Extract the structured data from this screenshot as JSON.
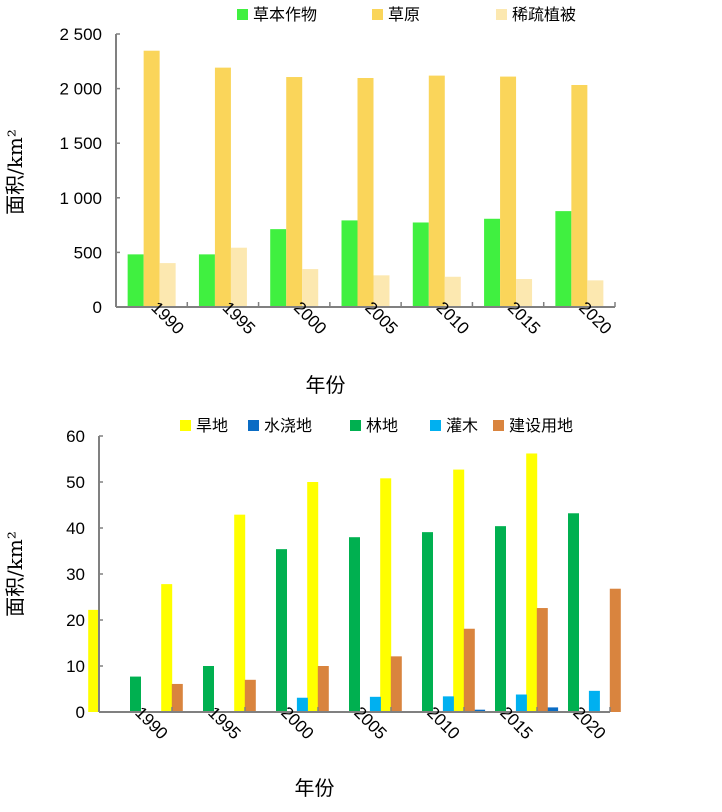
{
  "chart_data": [
    {
      "type": "bar",
      "title": "",
      "xlabel": "年份",
      "ylabel": "面积/km²",
      "ylim": [
        0,
        2500
      ],
      "yticks": [
        "0",
        "500",
        "1 000",
        "1 500",
        "2 000",
        "2 500"
      ],
      "ytick_values": [
        0,
        500,
        1000,
        1500,
        2000,
        2500
      ],
      "categories": [
        "1990",
        "1995",
        "2000",
        "2005",
        "2010",
        "2015",
        "2020"
      ],
      "legend": "top",
      "series": [
        {
          "name": "草本作物",
          "color": "#40F040",
          "values": [
            482,
            482,
            713,
            793,
            774,
            808,
            878
          ]
        },
        {
          "name": "草原",
          "color": "#FAD55A",
          "values": [
            2347,
            2192,
            2106,
            2097,
            2119,
            2110,
            2033
          ]
        },
        {
          "name": "稀疏植被",
          "color": "#FCE8B0",
          "values": [
            402,
            543,
            347,
            290,
            277,
            256,
            244
          ]
        }
      ]
    },
    {
      "type": "bar",
      "title": "",
      "xlabel": "年份",
      "ylabel": "面积/km²",
      "ylim": [
        0,
        60
      ],
      "yticks": [
        "0",
        "10",
        "20",
        "30",
        "40",
        "50",
        "60"
      ],
      "ytick_values": [
        0,
        10,
        20,
        30,
        40,
        50,
        60
      ],
      "categories": [
        "1990",
        "1995",
        "2000",
        "2005",
        "2010",
        "2015",
        "2020"
      ],
      "legend": "top",
      "series": [
        {
          "name": "旱地",
          "color": "#FFFF00",
          "values": [
            22.2,
            27.8,
            42.9,
            50.0,
            50.8,
            52.7,
            56.2
          ]
        },
        {
          "name": "水浇地",
          "color": "#0A6CC4",
          "values": [
            0,
            0,
            0,
            0.2,
            0.2,
            0.5,
            1.0
          ]
        },
        {
          "name": "林地",
          "color": "#00B050",
          "values": [
            7.7,
            10.0,
            35.4,
            38.0,
            39.1,
            40.4,
            43.2
          ]
        },
        {
          "name": "灌木",
          "color": "#00B0F0",
          "values": [
            0,
            0,
            3.1,
            3.3,
            3.4,
            3.8,
            4.6
          ]
        },
        {
          "name": "建设用地",
          "color": "#D9843E",
          "values": [
            6.1,
            7.0,
            10.0,
            12.1,
            18.1,
            22.6,
            26.8
          ]
        }
      ]
    }
  ]
}
